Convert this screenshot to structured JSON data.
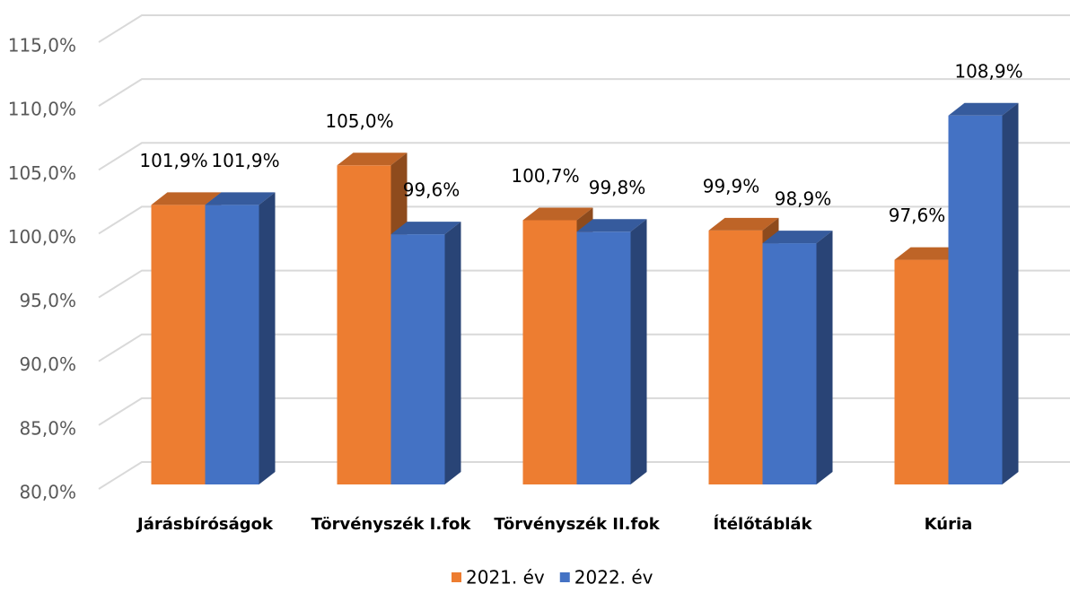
{
  "chart_data": {
    "type": "bar3d",
    "categories": [
      "Járásbíróságok",
      "Törvényszék I.fok",
      "Törvényszék II.fok",
      "Ítélőtáblák",
      "Kúria"
    ],
    "series": [
      {
        "name": "2021. év",
        "color": "#ED7D31",
        "values": [
          101.9,
          105.0,
          100.7,
          99.9,
          97.6
        ],
        "value_labels": [
          "101,9%",
          "105,0%",
          "100,7%",
          "99,9%",
          "97,6%"
        ]
      },
      {
        "name": "2022. év",
        "color": "#4472C4",
        "values": [
          101.9,
          99.6,
          99.8,
          98.9,
          108.9
        ],
        "value_labels": [
          "101,9%",
          "99,6%",
          "99,8%",
          "98,9%",
          "108,9%"
        ]
      }
    ],
    "ylim": [
      80,
      115
    ],
    "yticks": [
      {
        "value": 80,
        "label": "80,0%"
      },
      {
        "value": 85,
        "label": "85,0%"
      },
      {
        "value": 90,
        "label": "90,0%"
      },
      {
        "value": 95,
        "label": "95,0%"
      },
      {
        "value": 100,
        "label": "100,0%"
      },
      {
        "value": 105,
        "label": "105,0%"
      },
      {
        "value": 110,
        "label": "110,0%"
      },
      {
        "value": 115,
        "label": "115,0%"
      }
    ],
    "grid": true,
    "legend": "bottom"
  }
}
